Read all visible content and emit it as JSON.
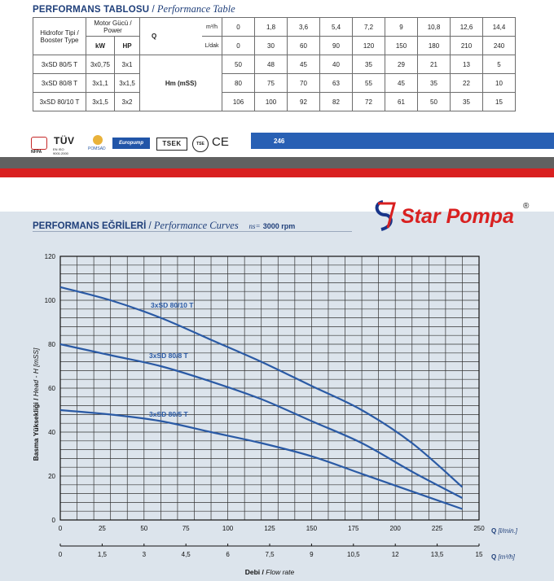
{
  "table": {
    "title_bold": "PERFORMANS TABLOSU",
    "title_sep": " / ",
    "title_italic": "Performance Table",
    "col_type_bold": "Hidrofor Tipi /",
    "col_type_italic": "Booster Type",
    "col_power_bold": "Motor Gücü /",
    "col_power_italic": "Power",
    "kw": "kW",
    "hp": "HP",
    "q": "Q",
    "unit_m3h": "m³/h",
    "unit_ldak": "L/dak",
    "hm": "Hm (mSS)",
    "flows_m3h": [
      "0",
      "1,8",
      "3,6",
      "5,4",
      "7,2",
      "9",
      "10,8",
      "12,6",
      "14,4"
    ],
    "flows_ldak": [
      "0",
      "30",
      "60",
      "90",
      "120",
      "150",
      "180",
      "210",
      "240"
    ],
    "rows": [
      {
        "type": "3xSD 80/5 T",
        "kw": "3x0,75",
        "hp": "3x1",
        "h": [
          "50",
          "48",
          "45",
          "40",
          "35",
          "29",
          "21",
          "13",
          "5"
        ]
      },
      {
        "type": "3xSD 80/8 T",
        "kw": "3x1,1",
        "hp": "3x1,5",
        "h": [
          "80",
          "75",
          "70",
          "63",
          "55",
          "45",
          "35",
          "22",
          "10"
        ]
      },
      {
        "type": "3xSD 80/10 T",
        "kw": "3x1,5",
        "hp": "3x2",
        "h": [
          "106",
          "100",
          "92",
          "82",
          "72",
          "61",
          "50",
          "35",
          "15"
        ]
      }
    ]
  },
  "certs": {
    "nfpa": "NFPA",
    "tuv": "TÜV",
    "tuv_sub": "EN ISO 9001:2000",
    "pomsad": "POMSAD",
    "europump": "Europump",
    "tsek": "TSEK",
    "tse": "TSE",
    "ce": "CE"
  },
  "page_number": "246",
  "curves": {
    "title_bold": "PERFORMANS EĞRİLERİ",
    "title_sep": " / ",
    "title_italic": "Performance Curves",
    "rpm_prefix": "ns=",
    "rpm": "3000 rpm"
  },
  "brand": {
    "name": "Star Pompa",
    "reg": "®"
  },
  "colors": {
    "navy": "#1f3f7a",
    "curve": "#2a5aa5",
    "blue_bar": "#2860b4",
    "red": "#d92020",
    "grey": "#616161",
    "chart_bg": "#dce4ec",
    "brand_red": "#d92020",
    "brand_blue": "#17358a"
  },
  "chart_data": {
    "type": "line",
    "ylabel_bold": "Basma Yüksekliği /",
    "ylabel_italic": "Head - H [mSS]",
    "xlabel_bold": "Debi /",
    "xlabel_italic": "Flow rate",
    "q_label": "Q",
    "x_unit_lmin": "[l/min.]",
    "x_unit_m3h": "[m³/h]",
    "xlim": [
      0,
      250
    ],
    "ylim": [
      0,
      120
    ],
    "grid": true,
    "x_ticks_lmin": [
      "0",
      "25",
      "50",
      "75",
      "100",
      "125",
      "150",
      "175",
      "200",
      "225",
      "250"
    ],
    "x_ticks_m3h": [
      "0",
      "1,5",
      "3",
      "4,5",
      "6",
      "7,5",
      "9",
      "10,5",
      "12",
      "13,5",
      "15"
    ],
    "y_ticks": [
      "0",
      "20",
      "40",
      "60",
      "80",
      "100",
      "120"
    ],
    "series": [
      {
        "name": "3xSD 80/10 T",
        "x": [
          0,
          30,
          60,
          90,
          120,
          150,
          180,
          210,
          240
        ],
        "y": [
          106,
          100,
          92,
          82,
          72,
          61,
          50,
          35,
          15
        ]
      },
      {
        "name": "3xSD 80/8 T",
        "x": [
          0,
          30,
          60,
          90,
          120,
          150,
          180,
          210,
          240
        ],
        "y": [
          80,
          75,
          70,
          63,
          55,
          45,
          35,
          22,
          10
        ]
      },
      {
        "name": "3xSD 80/5 T",
        "x": [
          0,
          30,
          60,
          90,
          120,
          150,
          180,
          210,
          240
        ],
        "y": [
          50,
          48,
          45,
          40,
          35,
          29,
          21,
          13,
          5
        ]
      }
    ]
  }
}
